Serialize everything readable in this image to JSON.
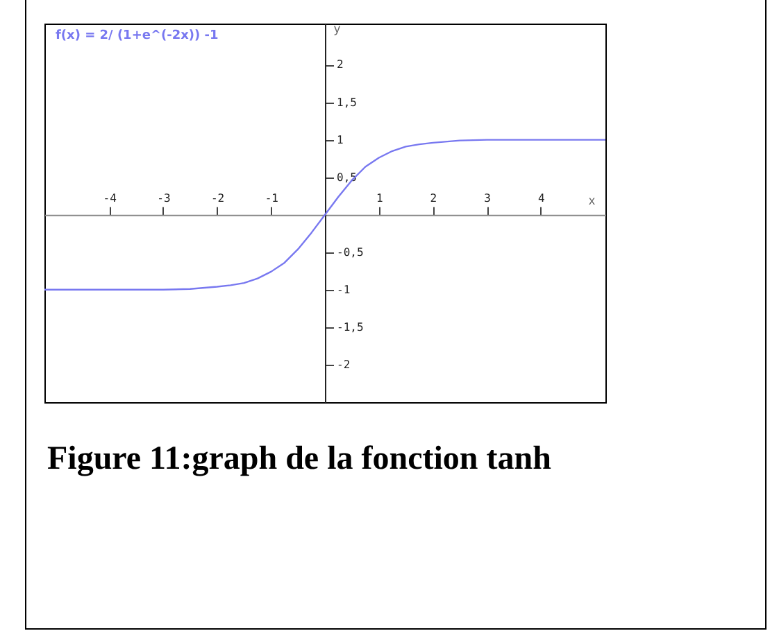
{
  "chart_data": {
    "type": "line",
    "title": "f(x) = 2/ (1+e^(-2x)) -1",
    "xlabel": "x",
    "ylabel": "y",
    "annotations": [
      "Figure 11:graph de la  fonction tanh"
    ],
    "x": [
      -5.2,
      -4.5,
      -4,
      -3.5,
      -3,
      -2.5,
      -2,
      -1.75,
      -1.5,
      -1.25,
      -1,
      -0.75,
      -0.5,
      -0.25,
      0,
      0.25,
      0.5,
      0.75,
      1,
      1.25,
      1.5,
      1.75,
      2,
      2.5,
      3,
      3.5,
      4,
      4.5,
      5.2
    ],
    "series": [
      {
        "color": "#7878f0",
        "values": [
          -1.0,
          -1.0,
          -1.0,
          -1.0,
          -1.0,
          -0.99,
          -0.96,
          -0.94,
          -0.91,
          -0.85,
          -0.76,
          -0.64,
          -0.46,
          -0.24,
          0,
          0.24,
          0.46,
          0.64,
          0.76,
          0.85,
          0.91,
          0.94,
          0.96,
          0.99,
          1.0,
          1.0,
          1.0,
          1.0,
          1.0
        ]
      }
    ],
    "xlim": [
      -5.2,
      5.2
    ],
    "ylim": [
      -2.5,
      2.55
    ],
    "xticks": [
      -4,
      -3,
      -2,
      -1,
      1,
      2,
      3,
      4
    ],
    "yticks": [
      2,
      {
        "value": 1.5,
        "label": "1,5"
      },
      1,
      {
        "value": 0.5,
        "label": "0,5"
      },
      {
        "value": -0.5,
        "label": "-0,5"
      },
      -1,
      {
        "value": -1.5,
        "label": "-1,5"
      },
      -2
    ],
    "grid": false,
    "marker": "none",
    "line_style": "solid"
  }
}
